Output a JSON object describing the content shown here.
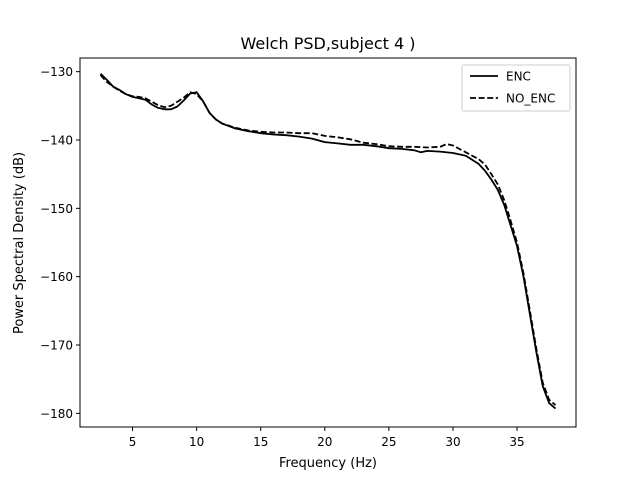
{
  "chart_data": {
    "type": "line",
    "title": "Welch PSD,subject 4 )",
    "xlabel": "Frequency (Hz)",
    "ylabel": "Power Spectral Density (dB)",
    "xlim": [
      0.9,
      39.6
    ],
    "ylim": [
      -182,
      -128
    ],
    "xticks": [
      5,
      10,
      15,
      20,
      25,
      30,
      35
    ],
    "yticks": [
      -130,
      -140,
      -150,
      -160,
      -170,
      -180
    ],
    "xtick_labels": [
      "5",
      "10",
      "15",
      "20",
      "25",
      "30",
      "35"
    ],
    "ytick_labels": [
      "−130",
      "−140",
      "−150",
      "−160",
      "−170",
      "−180"
    ],
    "grid": false,
    "legend": "top-right",
    "series": [
      {
        "name": "ENC",
        "style": "solid",
        "color": "#000000",
        "x": [
          2.5,
          3.0,
          3.5,
          4.0,
          4.5,
          5.0,
          5.5,
          6.0,
          6.5,
          7.0,
          7.5,
          8.0,
          8.5,
          9.0,
          9.5,
          10.0,
          10.5,
          11.0,
          11.5,
          12.0,
          13.0,
          14.0,
          15.0,
          16.0,
          17.0,
          18.0,
          19.0,
          20.0,
          21.0,
          22.0,
          23.0,
          24.0,
          25.0,
          26.0,
          27.0,
          27.5,
          28.0,
          29.0,
          30.0,
          31.0,
          32.0,
          32.5,
          33.0,
          33.5,
          34.0,
          34.5,
          35.0,
          35.5,
          36.0,
          36.5,
          37.0,
          37.5,
          38.0
        ],
        "y": [
          -130.3,
          -131.2,
          -132.2,
          -132.7,
          -133.3,
          -133.7,
          -133.9,
          -134.1,
          -134.8,
          -135.3,
          -135.5,
          -135.5,
          -135.1,
          -134.2,
          -133.2,
          -133.0,
          -134.3,
          -136.0,
          -137.0,
          -137.6,
          -138.3,
          -138.7,
          -139.0,
          -139.2,
          -139.3,
          -139.5,
          -139.8,
          -140.3,
          -140.5,
          -140.7,
          -140.7,
          -140.9,
          -141.2,
          -141.3,
          -141.5,
          -141.8,
          -141.6,
          -141.7,
          -141.9,
          -142.3,
          -143.5,
          -144.5,
          -145.8,
          -147.3,
          -149.5,
          -152.5,
          -155.5,
          -160.0,
          -165.5,
          -171.0,
          -176.0,
          -178.5,
          -179.3
        ]
      },
      {
        "name": "NO_ENC",
        "style": "dashed",
        "color": "#000000",
        "x": [
          2.5,
          3.0,
          3.5,
          4.0,
          4.5,
          5.0,
          5.5,
          6.0,
          6.5,
          7.0,
          7.5,
          8.0,
          8.5,
          9.0,
          9.5,
          10.0,
          10.5,
          11.0,
          11.5,
          12.0,
          13.0,
          14.0,
          15.0,
          16.0,
          17.0,
          18.0,
          19.0,
          20.0,
          21.0,
          22.0,
          23.0,
          24.0,
          25.0,
          26.0,
          27.0,
          28.0,
          29.0,
          29.5,
          30.0,
          31.0,
          32.0,
          32.5,
          33.0,
          33.5,
          34.0,
          34.5,
          35.0,
          35.5,
          36.0,
          36.5,
          37.0,
          37.5,
          38.0
        ],
        "y": [
          -130.5,
          -131.5,
          -132.2,
          -132.8,
          -133.3,
          -133.6,
          -133.7,
          -133.9,
          -134.4,
          -134.9,
          -135.2,
          -135.0,
          -134.4,
          -133.8,
          -133.0,
          -133.3,
          -134.3,
          -136.0,
          -137.0,
          -137.6,
          -138.2,
          -138.6,
          -138.8,
          -138.9,
          -138.9,
          -139.0,
          -139.0,
          -139.4,
          -139.6,
          -139.9,
          -140.4,
          -140.6,
          -140.9,
          -141.0,
          -141.0,
          -141.1,
          -141.0,
          -140.6,
          -140.8,
          -141.8,
          -142.8,
          -143.6,
          -145.0,
          -146.5,
          -148.8,
          -151.8,
          -155.0,
          -159.5,
          -165.0,
          -170.5,
          -175.5,
          -178.0,
          -178.8
        ]
      }
    ]
  }
}
